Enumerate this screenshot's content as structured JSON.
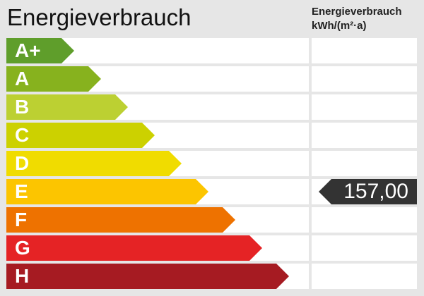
{
  "title": "Energieverbrauch",
  "column_header": {
    "line1": "Energieverbrauch",
    "line2": "kWh/(m²·a)"
  },
  "classes": [
    {
      "label": "A+",
      "color": "#5f9e2b"
    },
    {
      "label": "A",
      "color": "#87b21e"
    },
    {
      "label": "B",
      "color": "#bcd032"
    },
    {
      "label": "C",
      "color": "#ccd100"
    },
    {
      "label": "D",
      "color": "#f0dc00"
    },
    {
      "label": "E",
      "color": "#fcc500"
    },
    {
      "label": "F",
      "color": "#ee7200"
    },
    {
      "label": "G",
      "color": "#e52325"
    },
    {
      "label": "H",
      "color": "#a61b22"
    }
  ],
  "indicator": {
    "value": "157,00",
    "class": "E",
    "color": "#333333"
  }
}
